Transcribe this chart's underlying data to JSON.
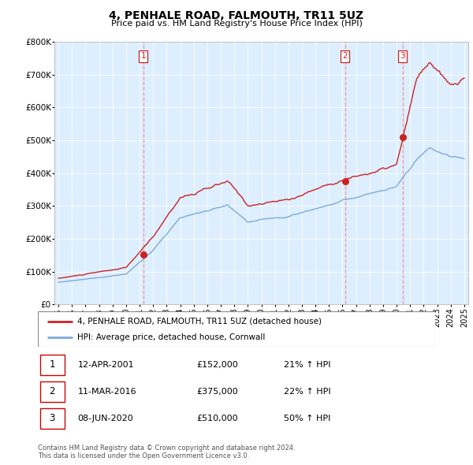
{
  "title": "4, PENHALE ROAD, FALMOUTH, TR11 5UZ",
  "subtitle": "Price paid vs. HM Land Registry's House Price Index (HPI)",
  "xlim": [
    1994.7,
    2025.3
  ],
  "ylim": [
    0,
    800000
  ],
  "yticks": [
    0,
    100000,
    200000,
    300000,
    400000,
    500000,
    600000,
    700000,
    800000
  ],
  "ytick_labels": [
    "£0",
    "£100K",
    "£200K",
    "£300K",
    "£400K",
    "£500K",
    "£600K",
    "£700K",
    "£800K"
  ],
  "legend_line1": "4, PENHALE ROAD, FALMOUTH, TR11 5UZ (detached house)",
  "legend_line2": "HPI: Average price, detached house, Cornwall",
  "sale_points": [
    {
      "label": "1",
      "date_x": 2001.28,
      "price": 152000
    },
    {
      "label": "2",
      "date_x": 2016.19,
      "price": 375000
    },
    {
      "label": "3",
      "date_x": 2020.44,
      "price": 510000
    }
  ],
  "sale_info": [
    {
      "num": "1",
      "date": "12-APR-2001",
      "price": "£152,000",
      "pct": "21% ↑ HPI"
    },
    {
      "num": "2",
      "date": "11-MAR-2016",
      "price": "£375,000",
      "pct": "22% ↑ HPI"
    },
    {
      "num": "3",
      "date": "08-JUN-2020",
      "price": "£510,000",
      "pct": "50% ↑ HPI"
    }
  ],
  "footer": "Contains HM Land Registry data © Crown copyright and database right 2024.\nThis data is licensed under the Open Government Licence v3.0.",
  "red_color": "#cc2222",
  "blue_color": "#7aabdb",
  "vline_color": "#ee9999",
  "chart_bg": "#ddeeff",
  "xticks": [
    1995,
    1996,
    1997,
    1998,
    1999,
    2000,
    2001,
    2002,
    2003,
    2004,
    2005,
    2006,
    2007,
    2008,
    2009,
    2010,
    2011,
    2012,
    2013,
    2014,
    2015,
    2016,
    2017,
    2018,
    2019,
    2020,
    2021,
    2022,
    2023,
    2024,
    2025
  ]
}
